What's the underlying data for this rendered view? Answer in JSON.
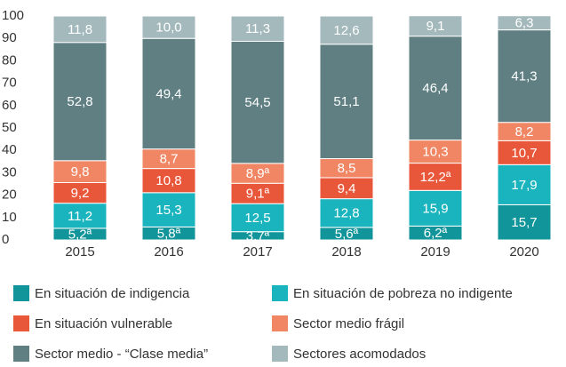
{
  "chart_data": {
    "type": "stacked_bar",
    "categories": [
      "2015",
      "2016",
      "2017",
      "2018",
      "2019",
      "2020"
    ],
    "ylim": [
      0,
      100
    ],
    "yticks": [
      0,
      10,
      20,
      30,
      40,
      50,
      60,
      70,
      80,
      90,
      100
    ],
    "grid": false,
    "series": [
      {
        "name": "En situación de indigencia",
        "color": "#12959a",
        "values": [
          5.2,
          5.8,
          3.7,
          5.6,
          6.2,
          15.7
        ],
        "value_labels": [
          "5,2ª",
          "5,8ª",
          "3,7ª",
          "5,6ª",
          "6,2ª",
          "15,7"
        ]
      },
      {
        "name": "En situación de pobreza no indigente",
        "color": "#1ab4be",
        "values": [
          11.2,
          15.3,
          12.5,
          12.8,
          15.9,
          17.9
        ],
        "value_labels": [
          "11,2",
          "15,3",
          "12,5",
          "12,8",
          "15,9",
          "17,9"
        ]
      },
      {
        "name": "En situación vulnerable",
        "color": "#e9573b",
        "values": [
          9.2,
          10.8,
          9.1,
          9.4,
          12.2,
          10.7
        ],
        "value_labels": [
          "9,2",
          "10,8",
          "9,1ª",
          "9,4",
          "12,2ª",
          "10,7"
        ]
      },
      {
        "name": "Sector medio frágil",
        "color": "#f08663",
        "values": [
          9.8,
          8.7,
          8.9,
          8.5,
          10.3,
          8.2
        ],
        "value_labels": [
          "9,8",
          "8,7",
          "8,9ª",
          "8,5",
          "10,3",
          "8,2"
        ]
      },
      {
        "name": "Sector medio - “Clase media”",
        "color": "#5f7f82",
        "values": [
          52.8,
          49.4,
          54.5,
          51.1,
          46.4,
          41.3
        ],
        "value_labels": [
          "52,8",
          "49,4",
          "54,5",
          "51,1",
          "46,4",
          "41,3"
        ]
      },
      {
        "name": "Sectores acomodados",
        "color": "#a4b9bc",
        "values": [
          11.8,
          10.0,
          11.3,
          12.6,
          9.1,
          6.3
        ],
        "value_labels": [
          "11,8",
          "10,0",
          "11,3",
          "12,6",
          "9,1",
          "6,3"
        ]
      }
    ]
  }
}
